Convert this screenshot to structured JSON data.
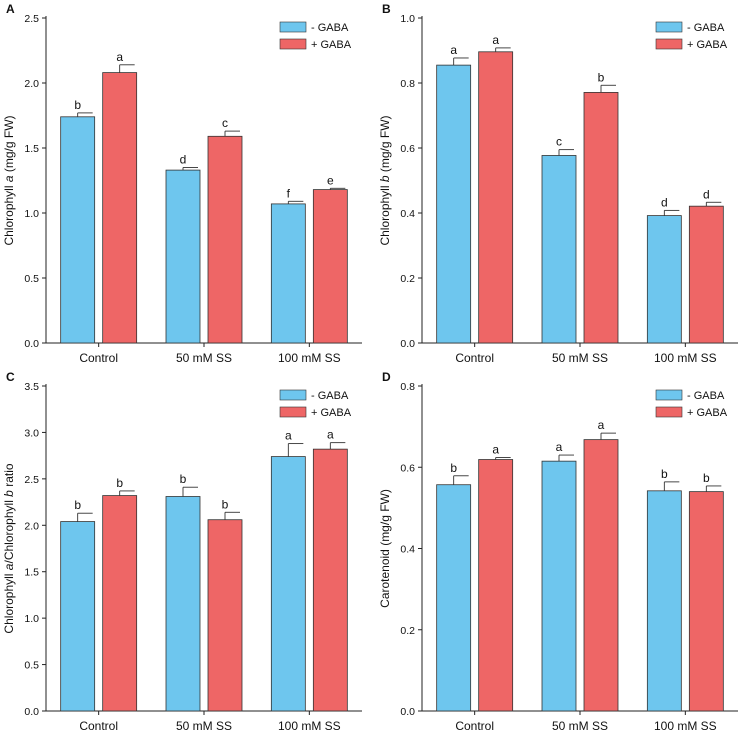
{
  "colors": {
    "minus": "#6EC6EE",
    "plus": "#EE6666",
    "axis": "#222222"
  },
  "chart_data": [
    {
      "type": "bar",
      "panel": "A",
      "ylabel_parts": [
        {
          "text": "Chlorophyll ",
          "italic": false
        },
        {
          "text": "a",
          "italic": true
        },
        {
          "text": " (mg/g FW)",
          "italic": false
        }
      ],
      "ylim": [
        0,
        2.5
      ],
      "yticks": [
        "0.0",
        "0.5",
        "1.0",
        "1.5",
        "2.0",
        "2.5"
      ],
      "categories": [
        "Control",
        "50 mM SS",
        "100 mM SS"
      ],
      "series": [
        {
          "name": "- GABA",
          "values": [
            1.74,
            1.33,
            1.07
          ],
          "errors": [
            0.03,
            0.02,
            0.02
          ],
          "letters": [
            "b",
            "d",
            "f"
          ]
        },
        {
          "name": "+ GABA",
          "values": [
            2.08,
            1.59,
            1.18
          ],
          "errors": [
            0.06,
            0.04,
            0.01
          ],
          "letters": [
            "a",
            "c",
            "e"
          ]
        }
      ],
      "legend": "top-right"
    },
    {
      "type": "bar",
      "panel": "B",
      "ylabel_parts": [
        {
          "text": "Chlorophyll ",
          "italic": false
        },
        {
          "text": "b",
          "italic": true
        },
        {
          "text": " (mg/g FW)",
          "italic": false
        }
      ],
      "ylim": [
        0,
        1.0
      ],
      "yticks": [
        "0.0",
        "0.2",
        "0.4",
        "0.6",
        "0.8",
        "1.0"
      ],
      "categories": [
        "Control",
        "50 mM SS",
        "100 mM SS"
      ],
      "series": [
        {
          "name": "- GABA",
          "values": [
            0.855,
            0.577,
            0.392
          ],
          "errors": [
            0.022,
            0.018,
            0.016
          ],
          "letters": [
            "a",
            "c",
            "d"
          ]
        },
        {
          "name": "+ GABA",
          "values": [
            0.896,
            0.771,
            0.421
          ],
          "errors": [
            0.012,
            0.022,
            0.012
          ],
          "letters": [
            "a",
            "b",
            "d"
          ]
        }
      ],
      "legend": "top-right"
    },
    {
      "type": "bar",
      "panel": "C",
      "ylabel_parts": [
        {
          "text": "Chlorophyll ",
          "italic": false
        },
        {
          "text": "a",
          "italic": true
        },
        {
          "text": "/Chlorophyll ",
          "italic": false
        },
        {
          "text": "b",
          "italic": true
        },
        {
          "text": " ratio",
          "italic": false
        }
      ],
      "ylim": [
        0,
        3.5
      ],
      "yticks": [
        "0.0",
        "0.5",
        "1.0",
        "1.5",
        "2.0",
        "2.5",
        "3.0",
        "3.5"
      ],
      "categories": [
        "Control",
        "50 mM SS",
        "100 mM SS"
      ],
      "series": [
        {
          "name": "- GABA",
          "values": [
            2.04,
            2.31,
            2.74
          ],
          "errors": [
            0.09,
            0.1,
            0.14
          ],
          "letters": [
            "b",
            "b",
            "a"
          ]
        },
        {
          "name": "+ GABA",
          "values": [
            2.32,
            2.06,
            2.82
          ],
          "errors": [
            0.05,
            0.08,
            0.07
          ],
          "letters": [
            "b",
            "b",
            "a"
          ]
        }
      ],
      "legend": "top-right"
    },
    {
      "type": "bar",
      "panel": "D",
      "ylabel_parts": [
        {
          "text": "Carotenoid (mg/g FW)",
          "italic": false
        }
      ],
      "ylim": [
        0,
        0.8
      ],
      "yticks": [
        "0.0",
        "0.2",
        "0.4",
        "0.6",
        "0.8"
      ],
      "categories": [
        "Control",
        "50 mM SS",
        "100 mM SS"
      ],
      "series": [
        {
          "name": "- GABA",
          "values": [
            0.557,
            0.615,
            0.542
          ],
          "errors": [
            0.022,
            0.015,
            0.022
          ],
          "letters": [
            "b",
            "a",
            "b"
          ]
        },
        {
          "name": "+ GABA",
          "values": [
            0.619,
            0.668,
            0.54
          ],
          "errors": [
            0.005,
            0.016,
            0.014
          ],
          "letters": [
            "a",
            "a",
            "b"
          ]
        }
      ],
      "legend": "top-right"
    }
  ]
}
